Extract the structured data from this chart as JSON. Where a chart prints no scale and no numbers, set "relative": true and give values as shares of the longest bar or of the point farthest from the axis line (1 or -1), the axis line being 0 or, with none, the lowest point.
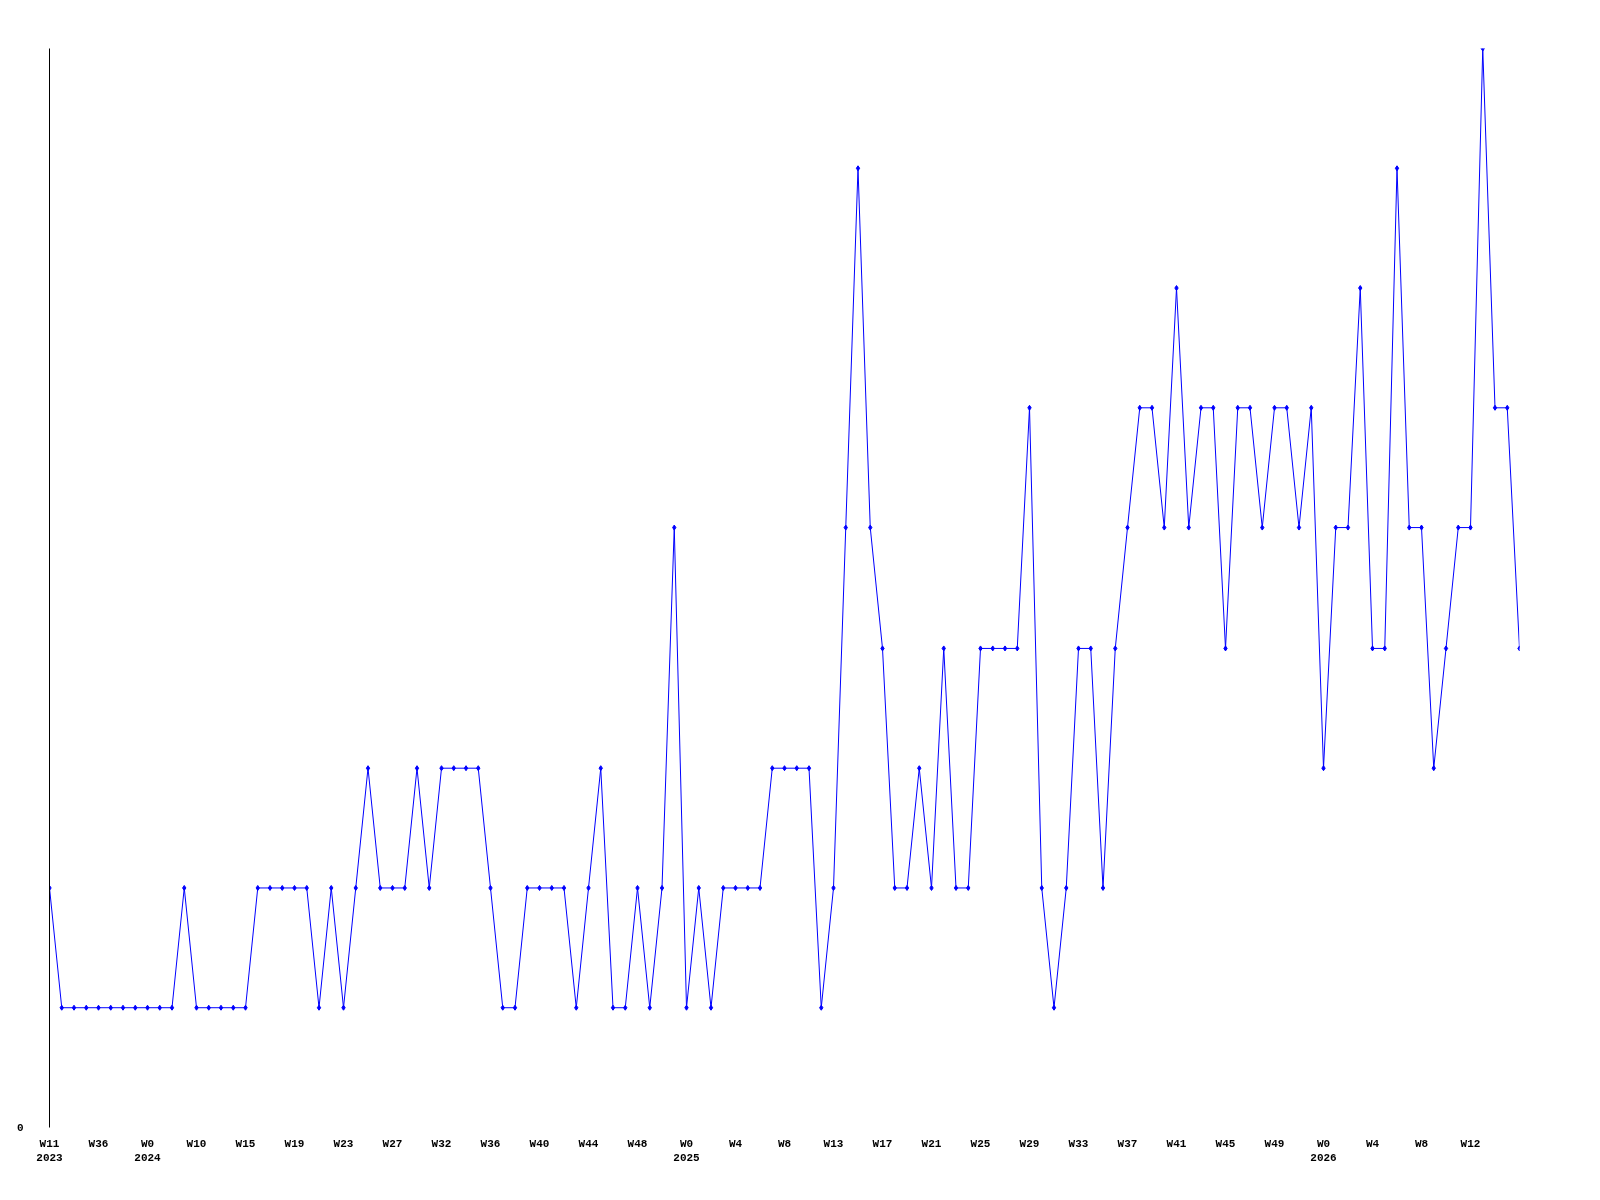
{
  "chart_data": {
    "type": "line",
    "relative": true,
    "color": "#0000ff",
    "marker": "diamond",
    "line_style": "solid",
    "grid": false,
    "legend": false,
    "annotations": [
      "0"
    ],
    "categories": [
      "W11\n2023",
      null,
      null,
      null,
      "W36",
      null,
      null,
      null,
      "W0\n2024",
      null,
      null,
      null,
      "W10",
      null,
      null,
      null,
      "W15",
      null,
      null,
      null,
      "W19",
      null,
      null,
      null,
      "W23",
      null,
      null,
      null,
      "W27",
      null,
      null,
      null,
      "W32",
      null,
      null,
      null,
      "W36",
      null,
      null,
      null,
      "W40",
      null,
      null,
      null,
      "W44",
      null,
      null,
      null,
      "W48",
      null,
      null,
      null,
      "W0\n2025",
      null,
      null,
      null,
      "W4",
      null,
      null,
      null,
      "W8",
      null,
      null,
      null,
      "W13",
      null,
      null,
      null,
      "W17",
      null,
      null,
      null,
      "W21",
      null,
      null,
      null,
      "W25",
      null,
      null,
      null,
      "W29",
      null,
      null,
      null,
      "W33",
      null,
      null,
      null,
      "W37",
      null,
      null,
      null,
      "W41",
      null,
      null,
      null,
      "W45",
      null,
      null,
      null,
      "W49",
      null,
      null,
      null,
      "W0\n2026",
      null,
      null,
      null,
      "W4",
      null,
      null,
      null,
      "W8",
      null,
      null,
      null,
      "W12",
      null,
      null,
      null,
      null
    ],
    "values": [
      0.222,
      0.111,
      0.111,
      0.111,
      0.111,
      0.111,
      0.111,
      0.111,
      0.111,
      0.111,
      0.111,
      0.222,
      0.111,
      0.111,
      0.111,
      0.111,
      0.111,
      0.222,
      0.222,
      0.222,
      0.222,
      0.222,
      0.111,
      0.222,
      0.111,
      0.222,
      0.333,
      0.222,
      0.222,
      0.222,
      0.333,
      0.222,
      0.333,
      0.333,
      0.333,
      0.333,
      0.222,
      0.111,
      0.111,
      0.222,
      0.222,
      0.222,
      0.222,
      0.111,
      0.222,
      0.333,
      0.111,
      0.111,
      0.222,
      0.111,
      0.222,
      0.556,
      0.111,
      0.222,
      0.111,
      0.222,
      0.222,
      0.222,
      0.222,
      0.333,
      0.333,
      0.333,
      0.333,
      0.111,
      0.222,
      0.556,
      0.889,
      0.556,
      0.444,
      0.222,
      0.222,
      0.333,
      0.222,
      0.444,
      0.222,
      0.222,
      0.444,
      0.444,
      0.444,
      0.444,
      0.667,
      0.222,
      0.111,
      0.222,
      0.444,
      0.444,
      0.222,
      0.444,
      0.556,
      0.667,
      0.667,
      0.556,
      0.778,
      0.556,
      0.667,
      0.667,
      0.444,
      0.667,
      0.667,
      0.556,
      0.667,
      0.667,
      0.556,
      0.667,
      0.333,
      0.556,
      0.556,
      0.778,
      0.444,
      0.444,
      0.889,
      0.556,
      0.556,
      0.333,
      0.444,
      0.556,
      0.556,
      1,
      0.667,
      0.667,
      0.444
    ]
  }
}
